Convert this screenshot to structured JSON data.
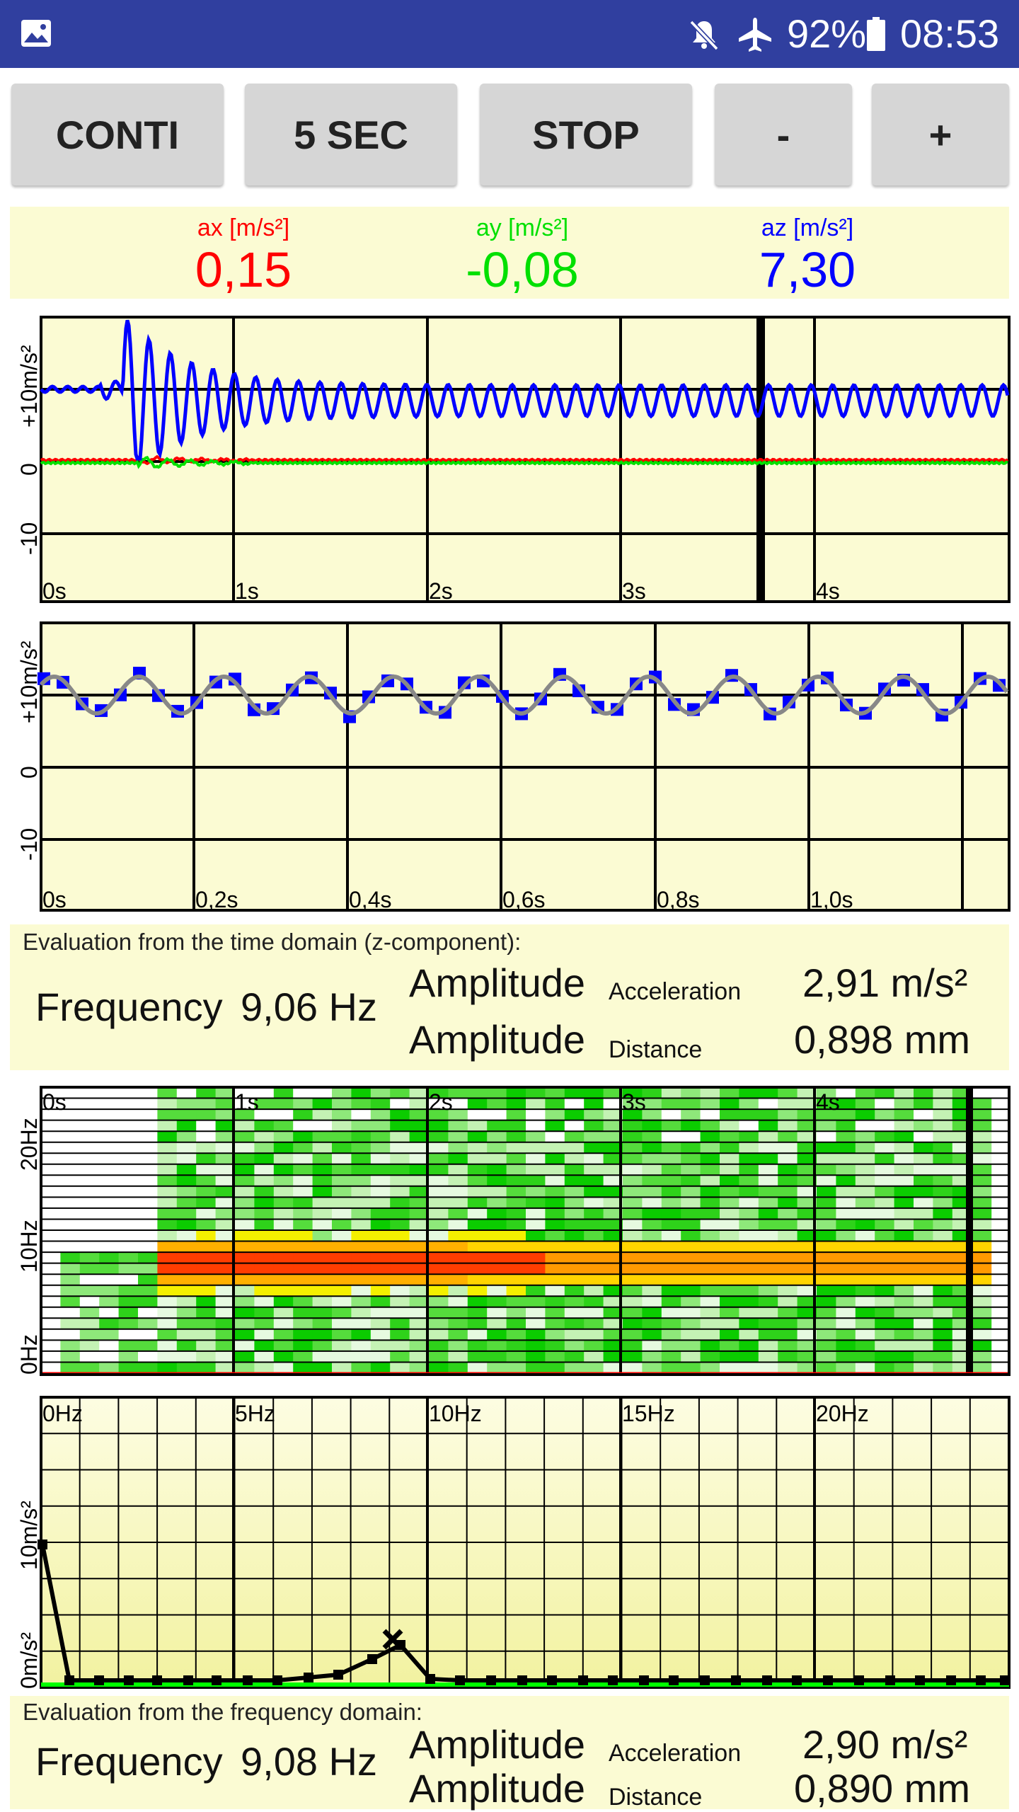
{
  "status_bar": {
    "icons": [
      "gallery-icon",
      "mute-icon",
      "airplane-mode-icon",
      "battery-icon"
    ],
    "battery": "92%",
    "time": "08:53"
  },
  "toolbar": {
    "conti": "CONTI",
    "five_sec": "5 SEC",
    "stop": "STOP",
    "minus": "-",
    "plus": "+"
  },
  "readout": {
    "ax_label": "ax [m/s²]",
    "ax_value": "0,15",
    "ay_label": "ay [m/s²]",
    "ay_value": "-0,08",
    "az_label": "az [m/s²]",
    "az_value": "7,30",
    "colors": {
      "ax": "#ff0000",
      "ay": "#00e000",
      "az": "#0000ff"
    }
  },
  "time_plot": {
    "y_labels": [
      "+10m/s²",
      "0",
      "-10"
    ],
    "x_labels": [
      "0s",
      "1s",
      "2s",
      "3s",
      "4s"
    ]
  },
  "zoom_plot": {
    "y_labels": [
      "+10m/s²",
      "0",
      "-10"
    ],
    "x_labels": [
      "0s",
      "0,2s",
      "0,4s",
      "0,6s",
      "0,8s",
      "1,0s"
    ]
  },
  "time_eval": {
    "header": "Evaluation from the time domain (z-component):",
    "frequency_label": "Frequency",
    "frequency_value": "9,06 Hz",
    "amplitude_label_1": "Amplitude",
    "acceleration_label": "Acceleration",
    "acceleration_value": "2,91 m/s²",
    "amplitude_label_2": "Amplitude",
    "distance_label": "Distance",
    "distance_value": "0,898 mm"
  },
  "spectrogram": {
    "y_labels": [
      "20Hz",
      "10Hz",
      "0Hz"
    ],
    "x_labels": [
      "0s",
      "1s",
      "2s",
      "3s",
      "4s"
    ]
  },
  "spectrum_plot": {
    "y_labels": [
      "10m/s²",
      "0m/s²"
    ],
    "x_labels": [
      "0Hz",
      "5Hz",
      "10Hz",
      "15Hz",
      "20Hz"
    ]
  },
  "freq_eval": {
    "header": "Evaluation from the frequency domain:",
    "frequency_label": "Frequency",
    "frequency_value": "9,08 Hz",
    "amplitude_label_1": "Amplitude",
    "acceleration_label": "Acceleration",
    "acceleration_value": "2,90 m/s²",
    "amplitude_label_2": "Amplitude",
    "distance_label": "Distance",
    "distance_value": "0,890 mm"
  }
}
